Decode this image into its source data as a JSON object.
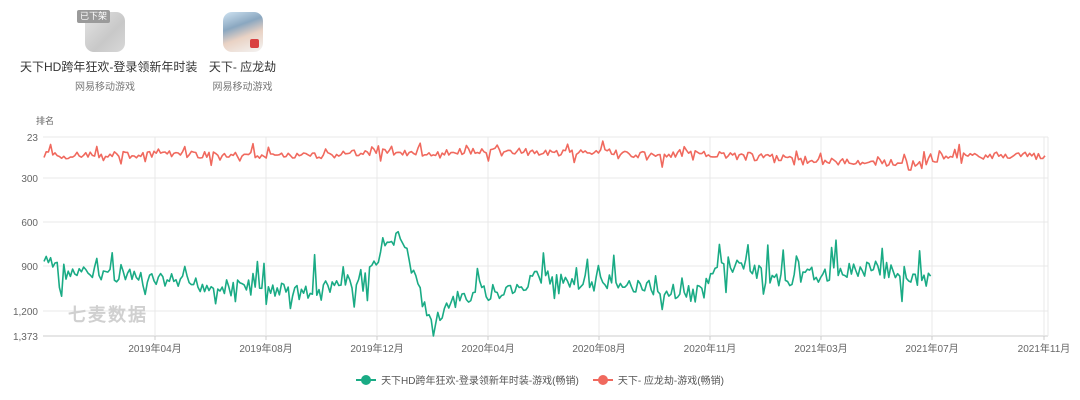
{
  "apps": [
    {
      "name": "天下HD跨年狂欢-登录领新年时装",
      "publisher": "网易移动游戏",
      "badge": "已下架",
      "icon": "app-icon-tianxia-hd-delisted"
    },
    {
      "name": "天下- 应龙劫",
      "publisher": "网易移动游戏",
      "icon": "app-icon-tianxia-yinglongjie"
    }
  ],
  "watermark": "七麦数据",
  "colors": {
    "series1": "#1aab85",
    "series2": "#f0695e",
    "grid": "#e8e8e8",
    "axis": "#cccccc",
    "tick_text": "#666666"
  },
  "chart_data": {
    "type": "line",
    "title": "",
    "ylabel": "排名",
    "xlabel": "",
    "y_inverted": true,
    "ylim": [
      23,
      1373
    ],
    "yticks": [
      23,
      300,
      600,
      900,
      1200,
      1373
    ],
    "ytick_labels": [
      "23",
      "300",
      "600",
      "900",
      "1,200",
      "1,373"
    ],
    "xticks": [
      "2019年04月",
      "2019年08月",
      "2019年12月",
      "2020年04月",
      "2020年08月",
      "2020年11月",
      "2021年03月",
      "2021年07月",
      "2021年11月"
    ],
    "x_range": [
      "2019-01",
      "2021-11"
    ],
    "grid": true,
    "legend_position": "bottom",
    "series": [
      {
        "name": "天下HD跨年狂欢-登录领新年时装-游戏(畅销)",
        "color": "#1aab85",
        "x": [
          "2019-01",
          "2019-02",
          "2019-03",
          "2019-04",
          "2019-05",
          "2019-06",
          "2019-07",
          "2019-08",
          "2019-09",
          "2019-10",
          "2019-11",
          "2019-12",
          "2020-01",
          "2020-02",
          "2020-03",
          "2020-04",
          "2020-05",
          "2020-06",
          "2020-07",
          "2020-08",
          "2020-09",
          "2020-10",
          "2020-11",
          "2020-12",
          "2021-01",
          "2021-02",
          "2021-03",
          "2021-04",
          "2021-05",
          "2021-06",
          "2021-07"
        ],
        "values": [
          870,
          960,
          940,
          980,
          1000,
          1020,
          1040,
          1050,
          1060,
          1080,
          1020,
          960,
          660,
          1280,
          1120,
          1080,
          1040,
          980,
          1000,
          1020,
          1040,
          1060,
          1090,
          880,
          940,
          1000,
          960,
          930,
          920,
          940,
          1010
        ]
      },
      {
        "name": "天下- 应龙劫-游戏(畅销)",
        "color": "#f0695e",
        "x": [
          "2019-01",
          "2019-02",
          "2019-03",
          "2019-04",
          "2019-05",
          "2019-06",
          "2019-07",
          "2019-08",
          "2019-09",
          "2019-10",
          "2019-11",
          "2019-12",
          "2020-01",
          "2020-02",
          "2020-03",
          "2020-04",
          "2020-05",
          "2020-06",
          "2020-07",
          "2020-08",
          "2020-09",
          "2020-10",
          "2020-11",
          "2020-12",
          "2021-01",
          "2021-02",
          "2021-03",
          "2021-04",
          "2021-05",
          "2021-06",
          "2021-07",
          "2021-08",
          "2021-09",
          "2021-10",
          "2021-11"
        ],
        "values": [
          140,
          150,
          140,
          145,
          140,
          140,
          150,
          145,
          150,
          150,
          140,
          120,
          130,
          130,
          125,
          120,
          120,
          130,
          130,
          120,
          140,
          150,
          130,
          150,
          160,
          160,
          180,
          190,
          190,
          200,
          190,
          140,
          160,
          140,
          160
        ]
      }
    ]
  }
}
